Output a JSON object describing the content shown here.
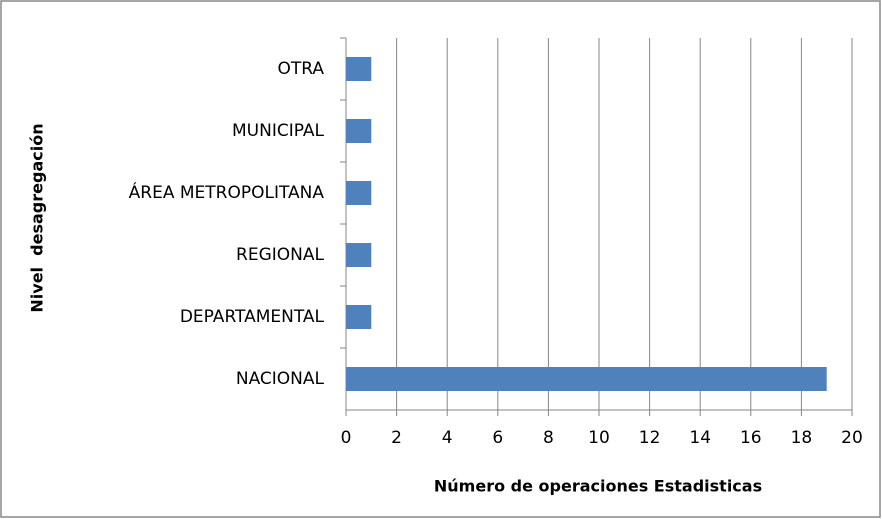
{
  "chart_data": {
    "type": "bar",
    "orientation": "horizontal",
    "categories": [
      "OTRA",
      "MUNICIPAL",
      "ÁREA METROPOLITANA",
      "REGIONAL",
      "DEPARTAMENTAL",
      "NACIONAL"
    ],
    "values": [
      1,
      1,
      1,
      1,
      1,
      19
    ],
    "color": "#4f81bd",
    "xlim": [
      0,
      20
    ],
    "xticks": [
      0,
      2,
      4,
      6,
      8,
      10,
      12,
      14,
      16,
      18,
      20
    ],
    "grid": true,
    "xlabel": "Número de operaciones Estadisticas",
    "ylabel": "Nivel  desagregación"
  }
}
